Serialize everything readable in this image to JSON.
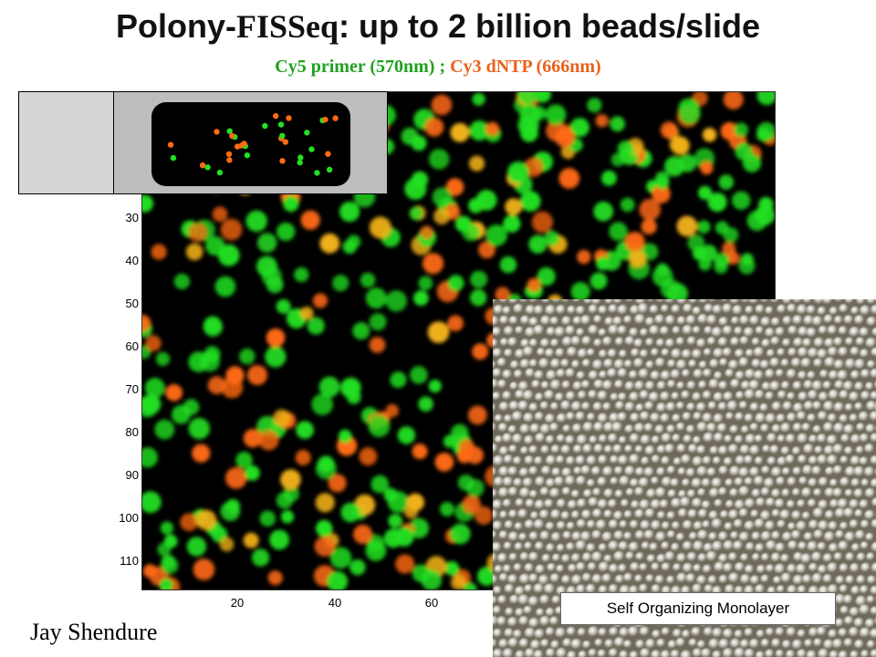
{
  "title": {
    "main": "Polony-",
    "mid": "FISSeq",
    "rest": ": up to 2 billion beads/slide"
  },
  "subtitle": {
    "cy5": "Cy5 primer (570nm) ;",
    "cy3": " Cy3 dNTP (666nm)"
  },
  "colors": {
    "green": "#1fa11f",
    "orange": "#e8621a",
    "bead_green": "#22e022",
    "bead_orange": "#ff6a14"
  },
  "plot": {
    "y_ticks": [
      "30",
      "40",
      "50",
      "60",
      "70",
      "80",
      "90",
      "100",
      "110"
    ],
    "x_ticks": [
      "20",
      "40",
      "60"
    ]
  },
  "inset_caption": "Self Organizing Monolayer",
  "author": "Jay Shendure"
}
